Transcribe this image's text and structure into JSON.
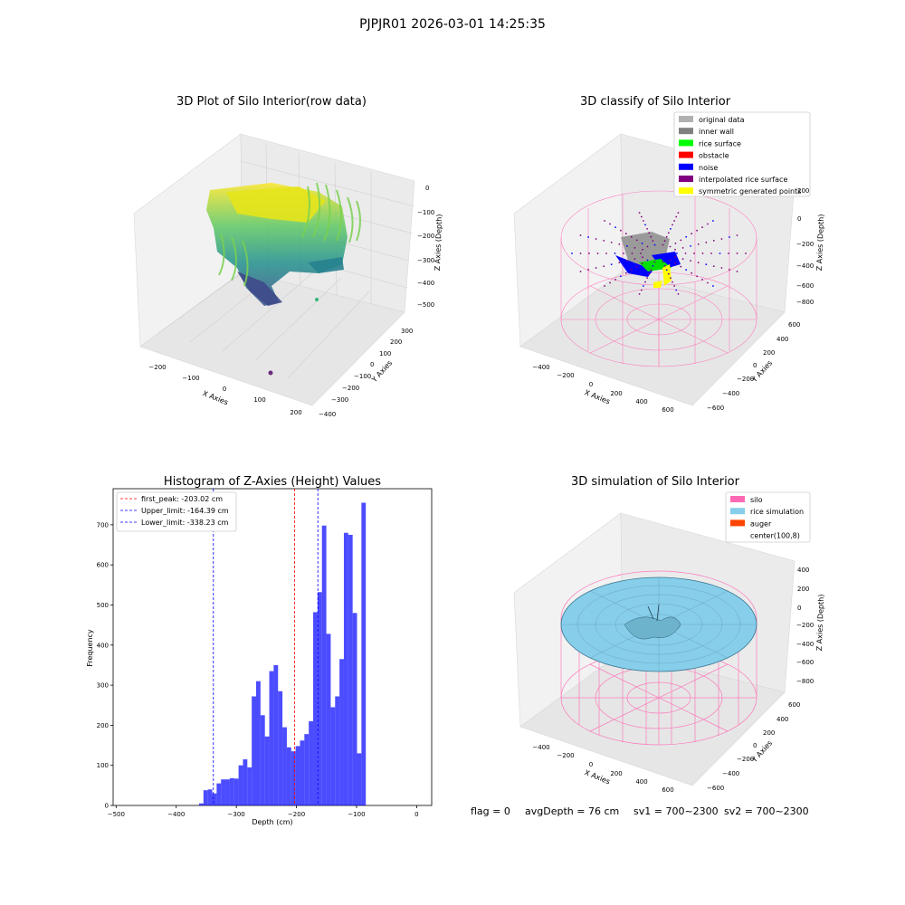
{
  "suptitle": "PJPJR01 2026-03-01 14:25:35",
  "panel1": {
    "title": "3D Plot of Silo Interior(row data)",
    "xlabel": "X Axies",
    "ylabel": "Y Axies",
    "zlabel": "Z Axies (Depth)",
    "xticks": [
      "−200",
      "−100",
      "0",
      "100",
      "200"
    ],
    "yticks": [
      "300",
      "200",
      "100",
      "0",
      "−100",
      "−200",
      "−300",
      "−400"
    ],
    "zticks": [
      "0",
      "−100",
      "−200",
      "−300",
      "−400",
      "−500"
    ]
  },
  "panel2": {
    "title": "3D classify of Silo Interior",
    "xlabel": "X Axies",
    "ylabel": "Y Axies",
    "zlabel": "Z Axies (Depth)",
    "xticks": [
      "−400",
      "−200",
      "0",
      "200",
      "400",
      "600"
    ],
    "yticks": [
      "600",
      "400",
      "200",
      "0",
      "−200",
      "−400",
      "−600"
    ],
    "zticks": [
      "200",
      "0",
      "−200",
      "−400",
      "−600",
      "−800"
    ],
    "legend": [
      {
        "label": "original data",
        "color": "#b0b0b0"
      },
      {
        "label": "inner wall",
        "color": "#808080"
      },
      {
        "label": "rice surface",
        "color": "#00ff00"
      },
      {
        "label": "obstacle",
        "color": "#ff0000"
      },
      {
        "label": "noise",
        "color": "#0000ff"
      },
      {
        "label": "interpolated rice surface",
        "color": "#800080"
      },
      {
        "label": "symmetric generated points",
        "color": "#ffff00"
      }
    ]
  },
  "panel3": {
    "title": "3D simulation of Silo Interior",
    "xlabel": "X Axies",
    "ylabel": "Y Axies",
    "zlabel": "Z Axies (Depth)",
    "xticks": [
      "−400",
      "−200",
      "0",
      "200",
      "400",
      "600"
    ],
    "yticks": [
      "600",
      "400",
      "200",
      "0",
      "−200",
      "−400",
      "−600"
    ],
    "zticks": [
      "400",
      "200",
      "0",
      "−200",
      "−400",
      "−600",
      "−800"
    ],
    "legend": [
      {
        "label": "silo",
        "color": "#ff69b4"
      },
      {
        "label": "rice simulation",
        "color": "#87ceeb"
      },
      {
        "label": "auger",
        "color": "#ff4500"
      },
      {
        "label": "center(100,8)",
        "color": "none"
      }
    ]
  },
  "status": {
    "flag": "flag = 0",
    "avg_depth": "avgDepth = 76 cm",
    "sv1": "sv1 = 700~2300",
    "sv2": "sv2 = 700~2300"
  },
  "chart_data": {
    "type": "bar",
    "title": "Histogram of Z-Axies (Height) Values",
    "xlabel": "Depth (cm)",
    "ylabel": "Frequency",
    "xlim": [
      -505,
      25
    ],
    "ylim": [
      0,
      790
    ],
    "xticks": [
      -500,
      -400,
      -300,
      -200,
      -100,
      0
    ],
    "yticks": [
      0,
      100,
      200,
      300,
      400,
      500,
      600,
      700
    ],
    "bar_color": "#0000ff",
    "bin_width": 7.3,
    "bins": [
      {
        "x0": -362.0,
        "value": 5
      },
      {
        "x0": -354.7,
        "value": 38
      },
      {
        "x0": -347.4,
        "value": 40
      },
      {
        "x0": -340.1,
        "value": 30
      },
      {
        "x0": -332.8,
        "value": 55
      },
      {
        "x0": -325.5,
        "value": 65
      },
      {
        "x0": -318.2,
        "value": 65
      },
      {
        "x0": -310.9,
        "value": 68
      },
      {
        "x0": -303.6,
        "value": 67
      },
      {
        "x0": -296.3,
        "value": 100
      },
      {
        "x0": -289.0,
        "value": 115
      },
      {
        "x0": -281.7,
        "value": 95
      },
      {
        "x0": -274.4,
        "value": 272
      },
      {
        "x0": -267.1,
        "value": 310
      },
      {
        "x0": -259.8,
        "value": 225
      },
      {
        "x0": -252.5,
        "value": 172
      },
      {
        "x0": -245.2,
        "value": 335
      },
      {
        "x0": -237.9,
        "value": 350
      },
      {
        "x0": -230.6,
        "value": 285
      },
      {
        "x0": -223.3,
        "value": 195
      },
      {
        "x0": -216.0,
        "value": 145
      },
      {
        "x0": -208.7,
        "value": 135
      },
      {
        "x0": -201.4,
        "value": 148
      },
      {
        "x0": -194.1,
        "value": 162
      },
      {
        "x0": -186.8,
        "value": 178
      },
      {
        "x0": -179.5,
        "value": 210
      },
      {
        "x0": -172.2,
        "value": 482
      },
      {
        "x0": -164.9,
        "value": 532
      },
      {
        "x0": -157.6,
        "value": 698
      },
      {
        "x0": -150.3,
        "value": 428
      },
      {
        "x0": -143.0,
        "value": 245
      },
      {
        "x0": -135.7,
        "value": 272
      },
      {
        "x0": -128.4,
        "value": 365
      },
      {
        "x0": -121.1,
        "value": 680
      },
      {
        "x0": -113.8,
        "value": 675
      },
      {
        "x0": -106.5,
        "value": 480
      },
      {
        "x0": -99.2,
        "value": 130
      },
      {
        "x0": -91.9,
        "value": 755
      }
    ],
    "vlines": [
      {
        "label": "first_peak: -203.02 cm",
        "x": -203.02,
        "color": "#ff0000"
      },
      {
        "label": "Upper_limit: -164.39 cm",
        "x": -164.39,
        "color": "#0000ff"
      },
      {
        "label": "Lower_limit: -338.23 cm",
        "x": -338.23,
        "color": "#0000ff"
      }
    ]
  }
}
